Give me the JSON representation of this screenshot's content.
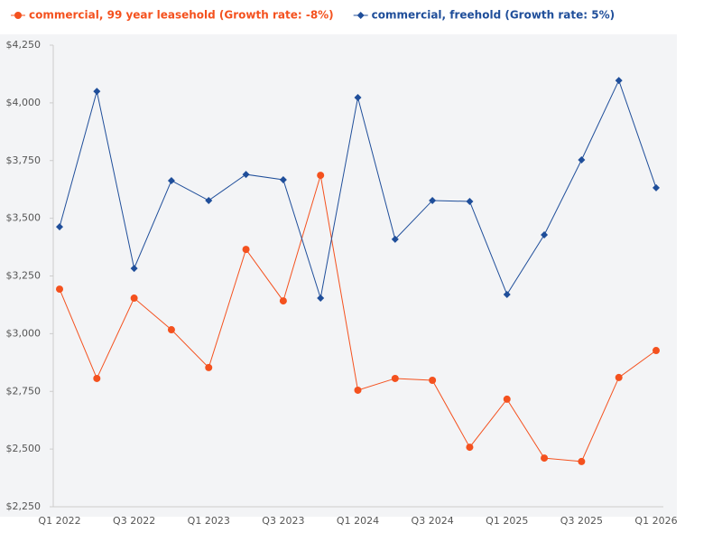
{
  "chart_data": {
    "type": "line",
    "categories": [
      "Q1 2022",
      null,
      "Q3 2022",
      null,
      "Q1 2023",
      null,
      "Q3 2023",
      null,
      "Q1 2024",
      null,
      "Q3 2024",
      null,
      "Q1 2025",
      null,
      "Q3 2025",
      null,
      "Q1 2026"
    ],
    "series": [
      {
        "name": "commercial, 99 year leasehold (Growth rate: -8%)",
        "color": "#f4511e",
        "marker": "circle",
        "values": [
          3193,
          2806,
          3154,
          3017,
          2853,
          3365,
          3142,
          3686,
          2755,
          2806,
          2798,
          2508,
          2716,
          2461,
          2446,
          2810,
          2927
        ]
      },
      {
        "name": "commercial, freehold (Growth rate: 5%)",
        "color": "#1f4e9a",
        "marker": "diamond",
        "values": [
          3463,
          4050,
          3283,
          3663,
          3577,
          3690,
          3667,
          3154,
          4023,
          3409,
          3577,
          3573,
          3170,
          3428,
          3753,
          4097,
          3632
        ]
      }
    ],
    "ylim": [
      2250,
      4250
    ],
    "yticks": [
      {
        "value": 2250,
        "label": "$2,250"
      },
      {
        "value": 2500,
        "label": "$2,500"
      },
      {
        "value": 2750,
        "label": "$2,750"
      },
      {
        "value": 3000,
        "label": "$3,000"
      },
      {
        "value": 3250,
        "label": "$3,250"
      },
      {
        "value": 3500,
        "label": "$3,500"
      },
      {
        "value": 3750,
        "label": "$3,750"
      },
      {
        "value": 4000,
        "label": "$4,000"
      },
      {
        "value": 4250,
        "label": "$4,250"
      }
    ],
    "legend": "top-left"
  }
}
